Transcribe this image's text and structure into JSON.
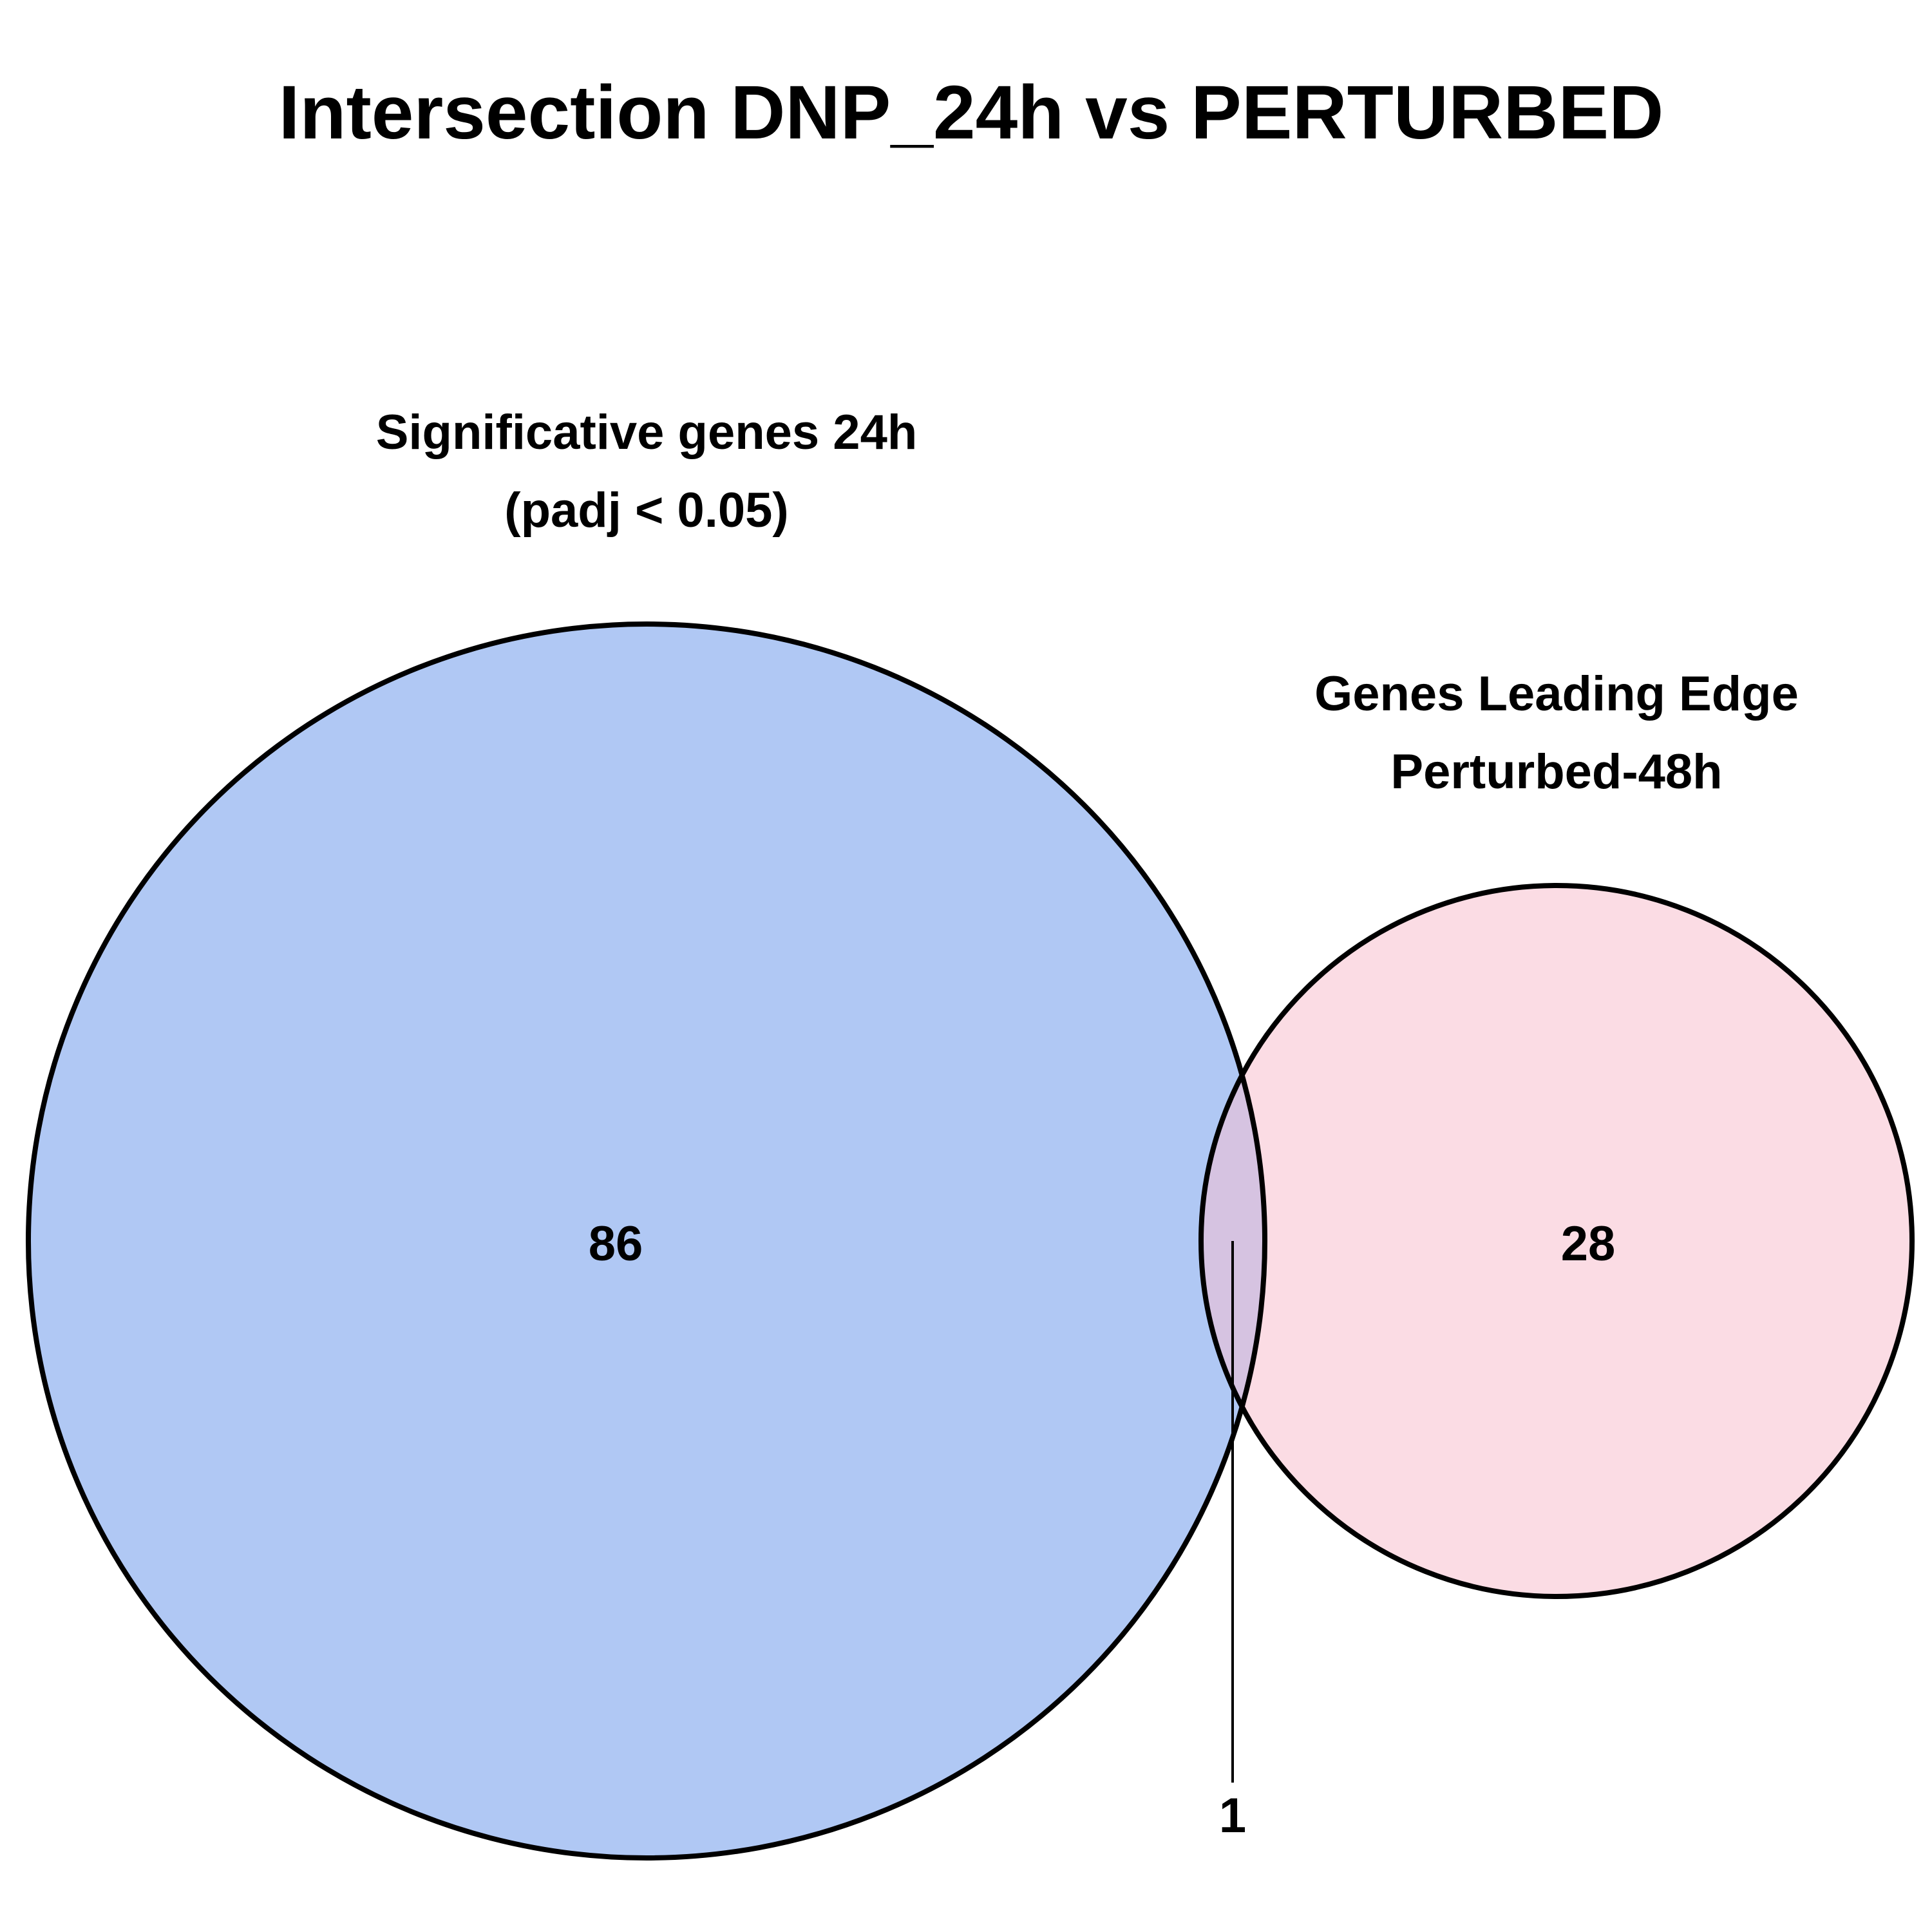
{
  "title": "Intersection DNP_24h vs PERTURBED",
  "sets": [
    {
      "label_line1": "Significative genes 24h",
      "label_line2": "(padj < 0.05)",
      "only_count": "86",
      "fill_color": "#b0c8f4"
    },
    {
      "label_line1": "Genes Leading Edge",
      "label_line2": "Perturbed-48h",
      "only_count": "28",
      "fill_color": "#fbdce4"
    }
  ],
  "intersection": {
    "count": "1",
    "fill_color": "#d6c3e1"
  },
  "chart_data": {
    "type": "venn",
    "title": "Intersection DNP_24h vs PERTURBED",
    "sets": [
      {
        "name": "Significative genes 24h (padj < 0.05)",
        "exclusive": 86
      },
      {
        "name": "Genes Leading Edge Perturbed-48h",
        "exclusive": 28
      }
    ],
    "intersection": 1
  }
}
